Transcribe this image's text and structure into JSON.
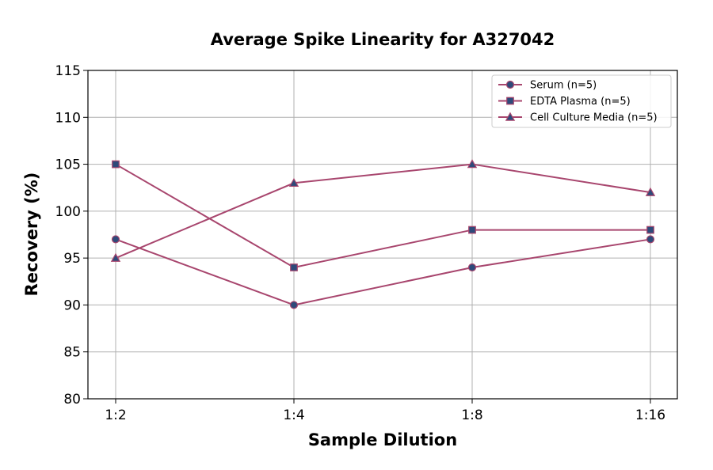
{
  "chart_data": {
    "type": "line",
    "title": "Average Spike Linearity for A327042",
    "xlabel": "Sample Dilution",
    "ylabel": "Recovery (%)",
    "categories": [
      "1:2",
      "1:4",
      "1:8",
      "1:16"
    ],
    "ylim": [
      80,
      115
    ],
    "yticks": [
      80,
      85,
      90,
      95,
      100,
      105,
      110,
      115
    ],
    "grid": true,
    "legend_position": "top-right",
    "line_color": "#a8466e",
    "marker_color": "#2e4a7a",
    "series": [
      {
        "name": "Serum (n=5)",
        "marker": "circle",
        "values": [
          97,
          90,
          94,
          97
        ]
      },
      {
        "name": "EDTA Plasma (n=5)",
        "marker": "square",
        "values": [
          105,
          94,
          98,
          98
        ]
      },
      {
        "name": "Cell Culture Media (n=5)",
        "marker": "triangle",
        "values": [
          95,
          103,
          105,
          102
        ]
      }
    ]
  }
}
